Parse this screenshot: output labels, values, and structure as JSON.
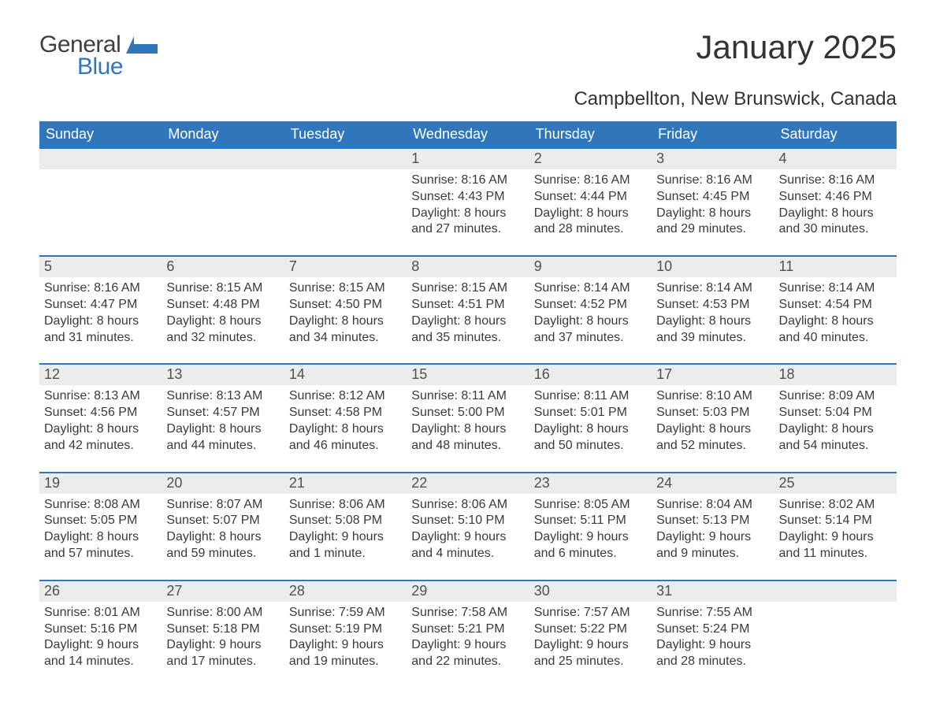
{
  "logo": {
    "word1": "General",
    "word2": "Blue",
    "text_color": "#3f3f3f",
    "accent_color": "#2f76bb"
  },
  "title": "January 2025",
  "subtitle": "Campbellton, New Brunswick, Canada",
  "colors": {
    "header_bg": "#2f76bb",
    "header_text": "#ffffff",
    "daynum_bg": "#ececec",
    "row_divider": "#2f76bb",
    "body_text": "#3a3a3a",
    "page_bg": "#ffffff"
  },
  "fonts": {
    "title_size": 42,
    "subtitle_size": 24,
    "header_size": 18,
    "daynum_size": 18,
    "body_size": 16
  },
  "weekday_labels": [
    "Sunday",
    "Monday",
    "Tuesday",
    "Wednesday",
    "Thursday",
    "Friday",
    "Saturday"
  ],
  "labels": {
    "sunrise": "Sunrise:",
    "sunset": "Sunset:",
    "daylight": "Daylight:"
  },
  "weeks": [
    [
      null,
      null,
      null,
      {
        "n": "1",
        "sunrise": "8:16 AM",
        "sunset": "4:43 PM",
        "daylight": [
          "8 hours",
          "and 27 minutes."
        ]
      },
      {
        "n": "2",
        "sunrise": "8:16 AM",
        "sunset": "4:44 PM",
        "daylight": [
          "8 hours",
          "and 28 minutes."
        ]
      },
      {
        "n": "3",
        "sunrise": "8:16 AM",
        "sunset": "4:45 PM",
        "daylight": [
          "8 hours",
          "and 29 minutes."
        ]
      },
      {
        "n": "4",
        "sunrise": "8:16 AM",
        "sunset": "4:46 PM",
        "daylight": [
          "8 hours",
          "and 30 minutes."
        ]
      }
    ],
    [
      {
        "n": "5",
        "sunrise": "8:16 AM",
        "sunset": "4:47 PM",
        "daylight": [
          "8 hours",
          "and 31 minutes."
        ]
      },
      {
        "n": "6",
        "sunrise": "8:15 AM",
        "sunset": "4:48 PM",
        "daylight": [
          "8 hours",
          "and 32 minutes."
        ]
      },
      {
        "n": "7",
        "sunrise": "8:15 AM",
        "sunset": "4:50 PM",
        "daylight": [
          "8 hours",
          "and 34 minutes."
        ]
      },
      {
        "n": "8",
        "sunrise": "8:15 AM",
        "sunset": "4:51 PM",
        "daylight": [
          "8 hours",
          "and 35 minutes."
        ]
      },
      {
        "n": "9",
        "sunrise": "8:14 AM",
        "sunset": "4:52 PM",
        "daylight": [
          "8 hours",
          "and 37 minutes."
        ]
      },
      {
        "n": "10",
        "sunrise": "8:14 AM",
        "sunset": "4:53 PM",
        "daylight": [
          "8 hours",
          "and 39 minutes."
        ]
      },
      {
        "n": "11",
        "sunrise": "8:14 AM",
        "sunset": "4:54 PM",
        "daylight": [
          "8 hours",
          "and 40 minutes."
        ]
      }
    ],
    [
      {
        "n": "12",
        "sunrise": "8:13 AM",
        "sunset": "4:56 PM",
        "daylight": [
          "8 hours",
          "and 42 minutes."
        ]
      },
      {
        "n": "13",
        "sunrise": "8:13 AM",
        "sunset": "4:57 PM",
        "daylight": [
          "8 hours",
          "and 44 minutes."
        ]
      },
      {
        "n": "14",
        "sunrise": "8:12 AM",
        "sunset": "4:58 PM",
        "daylight": [
          "8 hours",
          "and 46 minutes."
        ]
      },
      {
        "n": "15",
        "sunrise": "8:11 AM",
        "sunset": "5:00 PM",
        "daylight": [
          "8 hours",
          "and 48 minutes."
        ]
      },
      {
        "n": "16",
        "sunrise": "8:11 AM",
        "sunset": "5:01 PM",
        "daylight": [
          "8 hours",
          "and 50 minutes."
        ]
      },
      {
        "n": "17",
        "sunrise": "8:10 AM",
        "sunset": "5:03 PM",
        "daylight": [
          "8 hours",
          "and 52 minutes."
        ]
      },
      {
        "n": "18",
        "sunrise": "8:09 AM",
        "sunset": "5:04 PM",
        "daylight": [
          "8 hours",
          "and 54 minutes."
        ]
      }
    ],
    [
      {
        "n": "19",
        "sunrise": "8:08 AM",
        "sunset": "5:05 PM",
        "daylight": [
          "8 hours",
          "and 57 minutes."
        ]
      },
      {
        "n": "20",
        "sunrise": "8:07 AM",
        "sunset": "5:07 PM",
        "daylight": [
          "8 hours",
          "and 59 minutes."
        ]
      },
      {
        "n": "21",
        "sunrise": "8:06 AM",
        "sunset": "5:08 PM",
        "daylight": [
          "9 hours",
          "and 1 minute."
        ]
      },
      {
        "n": "22",
        "sunrise": "8:06 AM",
        "sunset": "5:10 PM",
        "daylight": [
          "9 hours",
          "and 4 minutes."
        ]
      },
      {
        "n": "23",
        "sunrise": "8:05 AM",
        "sunset": "5:11 PM",
        "daylight": [
          "9 hours",
          "and 6 minutes."
        ]
      },
      {
        "n": "24",
        "sunrise": "8:04 AM",
        "sunset": "5:13 PM",
        "daylight": [
          "9 hours",
          "and 9 minutes."
        ]
      },
      {
        "n": "25",
        "sunrise": "8:02 AM",
        "sunset": "5:14 PM",
        "daylight": [
          "9 hours",
          "and 11 minutes."
        ]
      }
    ],
    [
      {
        "n": "26",
        "sunrise": "8:01 AM",
        "sunset": "5:16 PM",
        "daylight": [
          "9 hours",
          "and 14 minutes."
        ]
      },
      {
        "n": "27",
        "sunrise": "8:00 AM",
        "sunset": "5:18 PM",
        "daylight": [
          "9 hours",
          "and 17 minutes."
        ]
      },
      {
        "n": "28",
        "sunrise": "7:59 AM",
        "sunset": "5:19 PM",
        "daylight": [
          "9 hours",
          "and 19 minutes."
        ]
      },
      {
        "n": "29",
        "sunrise": "7:58 AM",
        "sunset": "5:21 PM",
        "daylight": [
          "9 hours",
          "and 22 minutes."
        ]
      },
      {
        "n": "30",
        "sunrise": "7:57 AM",
        "sunset": "5:22 PM",
        "daylight": [
          "9 hours",
          "and 25 minutes."
        ]
      },
      {
        "n": "31",
        "sunrise": "7:55 AM",
        "sunset": "5:24 PM",
        "daylight": [
          "9 hours",
          "and 28 minutes."
        ]
      },
      null
    ]
  ]
}
